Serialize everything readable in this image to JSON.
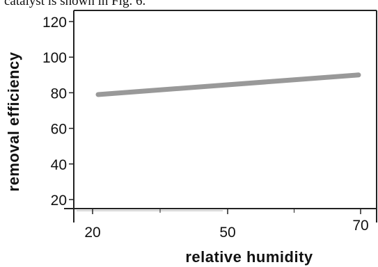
{
  "top_text": "catalyst is shown in Fig. 6.",
  "chart_data": {
    "type": "line",
    "title": "",
    "xlabel": "relative humidity",
    "ylabel": "removal efficiency",
    "x_ticks": [
      20,
      50,
      70
    ],
    "y_ticks": [
      20,
      40,
      60,
      80,
      100,
      120
    ],
    "xlim": [
      20,
      70
    ],
    "ylim": [
      15,
      128
    ],
    "grid": false,
    "series": [
      {
        "x": [
          20,
          70
        ],
        "y": [
          79,
          90
        ],
        "color": "#999999"
      }
    ]
  }
}
